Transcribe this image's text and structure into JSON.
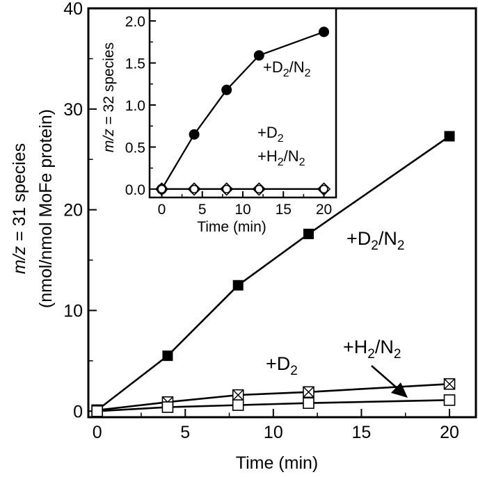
{
  "chart_data": [
    {
      "type": "line",
      "xlabel": "Time (min)",
      "ylabel_line1": "m/z = 31 species",
      "ylabel_line1_italic": "m/z",
      "ylabel_line1_rest": " = 31 species",
      "ylabel_line2": "(nmol/nmol MoFe protein)",
      "xlim": [
        -0.5,
        21.5
      ],
      "ylim": [
        -0.6,
        40
      ],
      "xticks": [
        0,
        5,
        10,
        15,
        20
      ],
      "xtick_labels": [
        "0",
        "5",
        "10",
        "15",
        "20"
      ],
      "yticks": [
        0,
        10,
        20,
        30,
        40
      ],
      "ytick_labels": [
        "0",
        "10",
        "20",
        "30",
        "40"
      ],
      "grid": false,
      "series": [
        {
          "name": "+D2/N2",
          "marker": "filled-square",
          "x": [
            0,
            4,
            8,
            12,
            20
          ],
          "y": [
            0.1,
            5.5,
            12.5,
            17.6,
            27.3
          ]
        },
        {
          "name": "+D2",
          "marker": "crossed-square",
          "x": [
            0,
            4,
            8,
            12,
            20
          ],
          "y": [
            0.1,
            0.9,
            1.6,
            1.9,
            2.7
          ]
        },
        {
          "name": "+H2/N2",
          "marker": "open-square",
          "x": [
            0,
            4,
            8,
            12,
            20
          ],
          "y": [
            0.0,
            0.4,
            0.6,
            0.8,
            1.1
          ]
        }
      ],
      "annotations": [
        {
          "series": "+D2/N2",
          "text": "+D",
          "sub1": "2",
          "mid": "/N",
          "sub2": "2"
        },
        {
          "series": "+D2",
          "text": "+D",
          "sub1": "2",
          "mid": "",
          "sub2": ""
        },
        {
          "series": "+H2/N2",
          "text": "+H",
          "sub1": "2",
          "mid": "/N",
          "sub2": "2"
        }
      ]
    },
    {
      "type": "line",
      "position": "inset-top-left",
      "xlabel": "Time (min)",
      "ylabel_italic": "m/z",
      "ylabel_rest": " = 32 species",
      "xlim": [
        -1.5,
        21.5
      ],
      "ylim": [
        -0.1,
        2.15
      ],
      "xticks": [
        0,
        5,
        10,
        15,
        20
      ],
      "xtick_labels": [
        "0",
        "5",
        "10",
        "15",
        "20"
      ],
      "yticks": [
        0,
        0.5,
        1.0,
        1.5,
        2.0
      ],
      "ytick_labels": [
        "0.0",
        "0.5",
        "1.0",
        "1.5",
        "2.0"
      ],
      "grid": false,
      "series": [
        {
          "name": "+D2/N2",
          "marker": "filled-circle",
          "x": [
            0,
            4,
            8,
            12,
            20
          ],
          "y": [
            0.0,
            0.65,
            1.18,
            1.59,
            1.87
          ]
        },
        {
          "name": "+D2",
          "marker": "open-diamond",
          "x": [
            0,
            4,
            8,
            12,
            20
          ],
          "y": [
            0.0,
            0.0,
            0.0,
            0.0,
            0.0
          ]
        },
        {
          "name": "+H2/N2",
          "marker": "open-circle",
          "x": [
            0,
            4,
            8,
            12,
            20
          ],
          "y": [
            0.0,
            0.0,
            0.0,
            0.0,
            0.0
          ]
        }
      ],
      "annotations": [
        {
          "text": "+D",
          "sub1": "2",
          "mid": "/N",
          "sub2": "2"
        },
        {
          "text": "+D",
          "sub1": "2",
          "mid": "",
          "sub2": ""
        },
        {
          "text": "+H",
          "sub1": "2",
          "mid": "/N",
          "sub2": "2"
        }
      ]
    }
  ]
}
